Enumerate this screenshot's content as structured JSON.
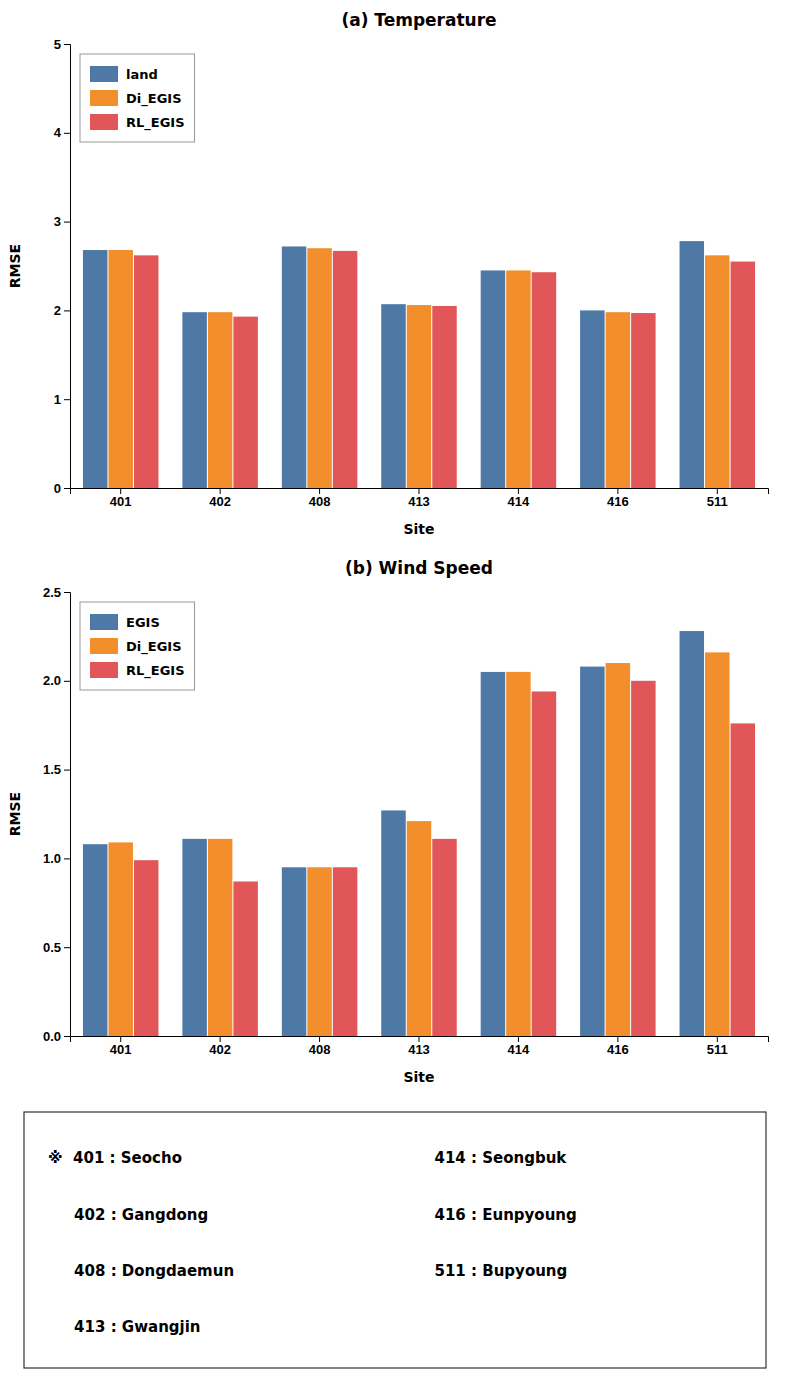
{
  "chart_data": [
    {
      "type": "bar",
      "title": "(a) Temperature",
      "categories": [
        "401",
        "402",
        "408",
        "413",
        "414",
        "416",
        "511"
      ],
      "series": [
        {
          "name": "land",
          "values": [
            2.68,
            1.98,
            2.72,
            2.07,
            2.45,
            2.0,
            2.78
          ]
        },
        {
          "name": "Di_EGIS",
          "values": [
            2.68,
            1.98,
            2.7,
            2.06,
            2.45,
            1.98,
            2.62
          ]
        },
        {
          "name": "RL_EGIS",
          "values": [
            2.62,
            1.93,
            2.67,
            2.05,
            2.43,
            1.97,
            2.55
          ]
        }
      ],
      "x_label": "Site",
      "y_label": "RMSE",
      "ylim": [
        0,
        5
      ],
      "yticks": [
        0,
        1,
        2,
        3,
        4,
        5
      ],
      "grid": false,
      "legend": "upper left"
    },
    {
      "type": "bar",
      "title": "(b) Wind Speed",
      "categories": [
        "401",
        "402",
        "408",
        "413",
        "414",
        "416",
        "511"
      ],
      "series": [
        {
          "name": "EGIS",
          "values": [
            1.08,
            1.11,
            0.95,
            1.27,
            2.05,
            2.08,
            2.28
          ]
        },
        {
          "name": "Di_EGIS",
          "values": [
            1.09,
            1.11,
            0.95,
            1.21,
            2.05,
            2.1,
            2.16
          ]
        },
        {
          "name": "RL_EGIS",
          "values": [
            0.99,
            0.87,
            0.95,
            1.11,
            1.94,
            2.0,
            1.76
          ]
        }
      ],
      "x_label": "Site",
      "y_label": "RMSE",
      "ylim": [
        0.0,
        2.5
      ],
      "yticks": [
        {
          "value": 0.0,
          "label": "0.0"
        },
        {
          "value": 0.5,
          "label": "0.5"
        },
        {
          "value": 1.0,
          "label": "1.0"
        },
        {
          "value": 1.5,
          "label": "1.5"
        },
        {
          "value": 2.0,
          "label": "2.0"
        },
        {
          "value": 2.5,
          "label": "2.5"
        }
      ],
      "grid": false,
      "legend": "upper left",
      "annotations": [
        "※  401 : Seocho",
        "     402 : Gangdong",
        "     408 : Dongdaemun",
        "     413 : Gwangjin",
        "414 : Seongbuk",
        "416 : Eunpyoung",
        "511 : Bupyoung"
      ]
    }
  ]
}
